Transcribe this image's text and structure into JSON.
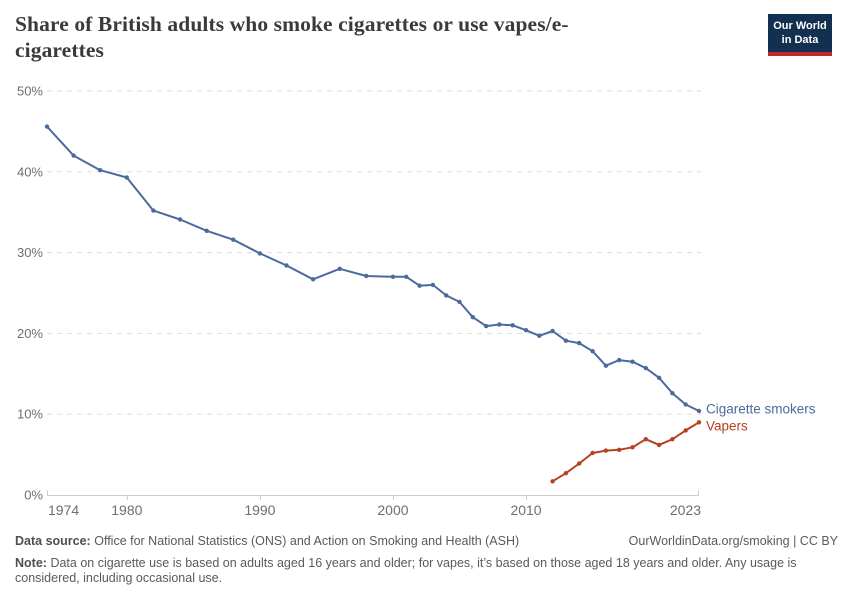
{
  "header": {
    "title": "Share of British adults who smoke cigarettes or use vapes/e-cigarettes",
    "logo": {
      "line1": "Our World",
      "line2": "in Data"
    }
  },
  "colors": {
    "title_text": "#3a3a3a",
    "grid": "#dddddd",
    "axis_line": "#cccccc",
    "tick_text": "#6e6e6e",
    "footer_text": "#5a5a5a",
    "logo_navy": "#12304F",
    "logo_red": "#C1272D",
    "smokers_blue": "#4C6A9C",
    "vapers_red": "#B6411F"
  },
  "chart_data": {
    "type": "line",
    "title": "Share of British adults who smoke cigarettes or use vapes/e-cigarettes",
    "xlabel": "",
    "ylabel": "",
    "x_range": [
      1974,
      2023
    ],
    "y_range": [
      0,
      50
    ],
    "grid": true,
    "grid_style": "dashed",
    "legend_position": "line-end-labels",
    "x_ticks": [
      {
        "year": 1974,
        "label": "1974",
        "anchor": "start"
      },
      {
        "year": 1980,
        "label": "1980",
        "anchor": "middle"
      },
      {
        "year": 1990,
        "label": "1990",
        "anchor": "middle"
      },
      {
        "year": 2000,
        "label": "2000",
        "anchor": "middle"
      },
      {
        "year": 2010,
        "label": "2010",
        "anchor": "middle"
      },
      {
        "year": 2023,
        "label": "2023",
        "anchor": "end"
      }
    ],
    "y_ticks": [
      {
        "value": 0,
        "label": "0%"
      },
      {
        "value": 10,
        "label": "10%"
      },
      {
        "value": 20,
        "label": "20%"
      },
      {
        "value": 30,
        "label": "30%"
      },
      {
        "value": 40,
        "label": "40%"
      },
      {
        "value": 50,
        "label": "50%"
      }
    ],
    "series": [
      {
        "name": "Cigarette smokers",
        "color": "#4C6A9C",
        "points": [
          [
            1974,
            45.6
          ],
          [
            1976,
            42.0
          ],
          [
            1978,
            40.2
          ],
          [
            1980,
            39.3
          ],
          [
            1982,
            35.2
          ],
          [
            1984,
            34.1
          ],
          [
            1986,
            32.7
          ],
          [
            1988,
            31.6
          ],
          [
            1990,
            29.9
          ],
          [
            1992,
            28.4
          ],
          [
            1994,
            26.7
          ],
          [
            1996,
            28.0
          ],
          [
            1998,
            27.1
          ],
          [
            2000,
            27.0
          ],
          [
            2001,
            27.0
          ],
          [
            2002,
            25.9
          ],
          [
            2003,
            26.0
          ],
          [
            2004,
            24.7
          ],
          [
            2005,
            23.9
          ],
          [
            2006,
            22.0
          ],
          [
            2007,
            20.9
          ],
          [
            2008,
            21.1
          ],
          [
            2009,
            21.0
          ],
          [
            2010,
            20.4
          ],
          [
            2011,
            19.7
          ],
          [
            2012,
            20.3
          ],
          [
            2013,
            19.1
          ],
          [
            2014,
            18.8
          ],
          [
            2015,
            17.8
          ],
          [
            2016,
            16.0
          ],
          [
            2017,
            16.7
          ],
          [
            2018,
            16.5
          ],
          [
            2019,
            15.7
          ],
          [
            2020,
            14.5
          ],
          [
            2021,
            12.6
          ],
          [
            2022,
            11.2
          ],
          [
            2023,
            10.4
          ]
        ]
      },
      {
        "name": "Vapers",
        "color": "#B6411F",
        "points": [
          [
            2012,
            1.7
          ],
          [
            2013,
            2.7
          ],
          [
            2014,
            3.9
          ],
          [
            2015,
            5.2
          ],
          [
            2016,
            5.5
          ],
          [
            2017,
            5.6
          ],
          [
            2018,
            5.9
          ],
          [
            2019,
            6.9
          ],
          [
            2020,
            6.2
          ],
          [
            2021,
            6.9
          ],
          [
            2022,
            8.0
          ],
          [
            2023,
            9.0
          ]
        ]
      }
    ]
  },
  "footer": {
    "source_label": "Data source:",
    "source_text": "Office for National Statistics (ONS) and Action on Smoking and Health (ASH)",
    "link_text": "OurWorldinData.org/smoking | CC BY",
    "note_label": "Note:",
    "note_text": "Data on cigarette use is based on adults aged 16 years and older; for vapes, it’s based on those aged 18 years and older. Any usage is considered, including occasional use."
  }
}
